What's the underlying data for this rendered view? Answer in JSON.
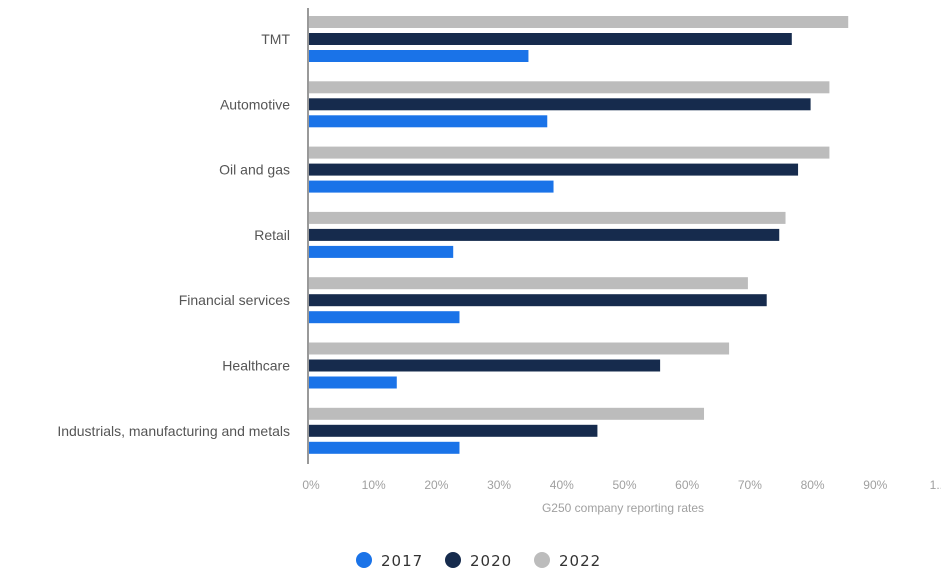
{
  "chart_data": {
    "type": "bar",
    "orientation": "horizontal",
    "categories": [
      "TMT",
      "Automotive",
      "Oil and gas",
      "Retail",
      "Financial services",
      "Healthcare",
      "Industrials, manufacturing and metals"
    ],
    "series": [
      {
        "name": "2022",
        "color": "#bcbcbc",
        "values": [
          86,
          83,
          83,
          76,
          70,
          67,
          63
        ]
      },
      {
        "name": "2020",
        "color": "#162b4d",
        "values": [
          77,
          80,
          78,
          75,
          73,
          56,
          46
        ]
      },
      {
        "name": "2017",
        "color": "#1a73e8",
        "values": [
          35,
          38,
          39,
          23,
          24,
          14,
          24
        ]
      }
    ],
    "legend_order": [
      "2017",
      "2020",
      "2022"
    ],
    "xlim": [
      0,
      100
    ],
    "xticks": [
      "0%",
      "10%",
      "20%",
      "30%",
      "40%",
      "50%",
      "60%",
      "70%",
      "80%",
      "90%",
      "1..."
    ],
    "xlabel": "G250 company reporting rates",
    "ylabel": "",
    "grid": false,
    "legend_position": "bottom"
  }
}
